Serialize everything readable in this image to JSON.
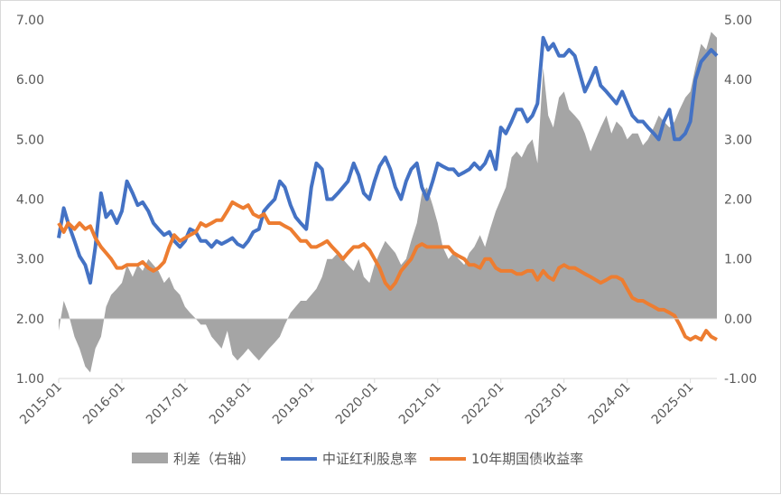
{
  "chart_data": {
    "type": "line",
    "title": "",
    "xlabel": "",
    "ylabel": "",
    "x_ticks": [
      "2015-01",
      "2016-01",
      "2017-01",
      "2018-01",
      "2019-01",
      "2020-01",
      "2021-01",
      "2022-01",
      "2023-01",
      "2024-01",
      "2025-01"
    ],
    "y_left_ticks": [
      "1.00",
      "2.00",
      "3.00",
      "4.00",
      "5.00",
      "6.00",
      "7.00"
    ],
    "y_right_ticks": [
      "-1.00",
      "0.00",
      "1.00",
      "2.00",
      "3.00",
      "4.00",
      "5.00"
    ],
    "ylim_left": [
      1,
      7
    ],
    "ylim_right": [
      -1,
      5
    ],
    "x_range": [
      2015.0,
      2025.42
    ],
    "grid": false,
    "legend_position": "bottom",
    "series": [
      {
        "name": "利差（右轴）",
        "type": "area",
        "axis": "right",
        "color": "#a5a5a5",
        "x": [
          2015.0,
          2015.08,
          2015.15,
          2015.25,
          2015.33,
          2015.42,
          2015.5,
          2015.58,
          2015.67,
          2015.75,
          2015.83,
          2015.92,
          2016.0,
          2016.08,
          2016.17,
          2016.25,
          2016.33,
          2016.42,
          2016.5,
          2016.58,
          2016.67,
          2016.75,
          2016.83,
          2016.92,
          2017.0,
          2017.08,
          2017.17,
          2017.25,
          2017.33,
          2017.42,
          2017.5,
          2017.58,
          2017.67,
          2017.75,
          2017.83,
          2017.92,
          2018.0,
          2018.08,
          2018.17,
          2018.25,
          2018.33,
          2018.42,
          2018.5,
          2018.58,
          2018.67,
          2018.75,
          2018.83,
          2018.92,
          2019.0,
          2019.08,
          2019.17,
          2019.25,
          2019.33,
          2019.42,
          2019.5,
          2019.58,
          2019.67,
          2019.75,
          2019.83,
          2019.92,
          2020.0,
          2020.08,
          2020.17,
          2020.25,
          2020.33,
          2020.42,
          2020.5,
          2020.58,
          2020.67,
          2020.75,
          2020.83,
          2020.92,
          2021.0,
          2021.08,
          2021.17,
          2021.25,
          2021.33,
          2021.42,
          2021.5,
          2021.58,
          2021.67,
          2021.75,
          2021.83,
          2021.92,
          2022.0,
          2022.08,
          2022.17,
          2022.25,
          2022.33,
          2022.42,
          2022.5,
          2022.58,
          2022.67,
          2022.75,
          2022.83,
          2022.92,
          2023.0,
          2023.08,
          2023.17,
          2023.25,
          2023.33,
          2023.42,
          2023.5,
          2023.58,
          2023.67,
          2023.75,
          2023.83,
          2023.92,
          2024.0,
          2024.08,
          2024.17,
          2024.25,
          2024.33,
          2024.42,
          2024.5,
          2024.58,
          2024.67,
          2024.75,
          2024.83,
          2024.92,
          2025.0,
          2025.08,
          2025.17,
          2025.25,
          2025.33,
          2025.42
        ],
        "values": [
          -0.2,
          0.3,
          0.1,
          -0.3,
          -0.5,
          -0.8,
          -0.9,
          -0.5,
          -0.3,
          0.2,
          0.4,
          0.5,
          0.6,
          0.9,
          0.7,
          0.9,
          0.8,
          1.0,
          0.9,
          0.8,
          0.6,
          0.7,
          0.5,
          0.4,
          0.2,
          0.1,
          0.0,
          -0.1,
          -0.1,
          -0.3,
          -0.4,
          -0.5,
          -0.2,
          -0.6,
          -0.7,
          -0.6,
          -0.5,
          -0.6,
          -0.7,
          -0.6,
          -0.5,
          -0.4,
          -0.3,
          -0.1,
          0.1,
          0.2,
          0.3,
          0.3,
          0.4,
          0.5,
          0.7,
          1.0,
          1.0,
          1.1,
          1.0,
          0.9,
          0.8,
          1.0,
          0.7,
          0.6,
          0.9,
          1.1,
          1.3,
          1.2,
          1.1,
          0.9,
          1.0,
          1.3,
          1.6,
          2.1,
          2.2,
          1.9,
          1.6,
          1.2,
          1.0,
          1.1,
          1.0,
          0.9,
          1.1,
          1.2,
          1.4,
          1.2,
          1.5,
          1.8,
          2.0,
          2.2,
          2.7,
          2.8,
          2.7,
          2.9,
          3.0,
          2.6,
          4.2,
          3.4,
          3.2,
          3.7,
          3.8,
          3.5,
          3.4,
          3.3,
          3.1,
          2.8,
          3.0,
          3.2,
          3.4,
          3.1,
          3.3,
          3.2,
          3.0,
          3.1,
          3.1,
          2.9,
          3.0,
          3.2,
          3.4,
          3.3,
          3.2,
          3.3,
          3.5,
          3.7,
          3.8,
          4.2,
          4.6,
          4.5,
          4.8,
          4.7
        ]
      },
      {
        "name": "中证红利股息率",
        "type": "line",
        "axis": "left",
        "color": "#4472c4",
        "x": [
          2015.0,
          2015.08,
          2015.15,
          2015.25,
          2015.33,
          2015.42,
          2015.5,
          2015.58,
          2015.67,
          2015.75,
          2015.83,
          2015.92,
          2016.0,
          2016.08,
          2016.17,
          2016.25,
          2016.33,
          2016.42,
          2016.5,
          2016.58,
          2016.67,
          2016.75,
          2016.83,
          2016.92,
          2017.0,
          2017.08,
          2017.17,
          2017.25,
          2017.33,
          2017.42,
          2017.5,
          2017.58,
          2017.67,
          2017.75,
          2017.83,
          2017.92,
          2018.0,
          2018.08,
          2018.17,
          2018.25,
          2018.33,
          2018.42,
          2018.5,
          2018.58,
          2018.67,
          2018.75,
          2018.83,
          2018.92,
          2019.0,
          2019.08,
          2019.17,
          2019.25,
          2019.33,
          2019.42,
          2019.5,
          2019.58,
          2019.67,
          2019.75,
          2019.83,
          2019.92,
          2020.0,
          2020.08,
          2020.17,
          2020.25,
          2020.33,
          2020.42,
          2020.5,
          2020.58,
          2020.67,
          2020.75,
          2020.83,
          2020.92,
          2021.0,
          2021.08,
          2021.17,
          2021.25,
          2021.33,
          2021.42,
          2021.5,
          2021.58,
          2021.67,
          2021.75,
          2021.83,
          2021.92,
          2022.0,
          2022.08,
          2022.17,
          2022.25,
          2022.33,
          2022.42,
          2022.5,
          2022.58,
          2022.67,
          2022.75,
          2022.83,
          2022.92,
          2023.0,
          2023.08,
          2023.17,
          2023.25,
          2023.33,
          2023.42,
          2023.5,
          2023.58,
          2023.67,
          2023.75,
          2023.83,
          2023.92,
          2024.0,
          2024.08,
          2024.17,
          2024.25,
          2024.33,
          2024.42,
          2024.5,
          2024.58,
          2024.67,
          2024.75,
          2024.83,
          2024.92,
          2025.0,
          2025.08,
          2025.17,
          2025.25,
          2025.33,
          2025.42
        ],
        "values": [
          3.35,
          3.85,
          3.6,
          3.3,
          3.05,
          2.9,
          2.6,
          3.2,
          4.1,
          3.7,
          3.8,
          3.6,
          3.8,
          4.3,
          4.1,
          3.9,
          3.95,
          3.8,
          3.6,
          3.5,
          3.4,
          3.45,
          3.3,
          3.2,
          3.3,
          3.5,
          3.45,
          3.3,
          3.3,
          3.2,
          3.3,
          3.25,
          3.3,
          3.35,
          3.25,
          3.2,
          3.3,
          3.45,
          3.5,
          3.8,
          3.9,
          4.0,
          4.3,
          4.2,
          3.9,
          3.7,
          3.6,
          3.5,
          4.2,
          4.6,
          4.5,
          4.0,
          4.0,
          4.1,
          4.2,
          4.3,
          4.6,
          4.4,
          4.1,
          4.0,
          4.3,
          4.55,
          4.7,
          4.5,
          4.2,
          4.0,
          4.3,
          4.5,
          4.6,
          4.2,
          4.0,
          4.3,
          4.6,
          4.55,
          4.5,
          4.5,
          4.4,
          4.45,
          4.5,
          4.6,
          4.5,
          4.6,
          4.8,
          4.5,
          5.2,
          5.1,
          5.3,
          5.5,
          5.5,
          5.3,
          5.4,
          5.6,
          6.7,
          6.5,
          6.6,
          6.4,
          6.4,
          6.5,
          6.4,
          6.1,
          5.8,
          6.0,
          6.2,
          5.9,
          5.8,
          5.7,
          5.6,
          5.8,
          5.6,
          5.4,
          5.3,
          5.3,
          5.2,
          5.1,
          5.0,
          5.3,
          5.5,
          5.0,
          5.0,
          5.1,
          5.3,
          6.0,
          6.3,
          6.4,
          6.5,
          6.4
        ]
      },
      {
        "name": "10年期国债收益率",
        "type": "line",
        "axis": "left",
        "color": "#ed7d31",
        "x": [
          2015.0,
          2015.08,
          2015.15,
          2015.25,
          2015.33,
          2015.42,
          2015.5,
          2015.58,
          2015.67,
          2015.75,
          2015.83,
          2015.92,
          2016.0,
          2016.08,
          2016.17,
          2016.25,
          2016.33,
          2016.42,
          2016.5,
          2016.58,
          2016.67,
          2016.75,
          2016.83,
          2016.92,
          2017.0,
          2017.08,
          2017.17,
          2017.25,
          2017.33,
          2017.42,
          2017.5,
          2017.58,
          2017.67,
          2017.75,
          2017.83,
          2017.92,
          2018.0,
          2018.08,
          2018.17,
          2018.25,
          2018.33,
          2018.42,
          2018.5,
          2018.58,
          2018.67,
          2018.75,
          2018.83,
          2018.92,
          2019.0,
          2019.08,
          2019.17,
          2019.25,
          2019.33,
          2019.42,
          2019.5,
          2019.58,
          2019.67,
          2019.75,
          2019.83,
          2019.92,
          2020.0,
          2020.08,
          2020.17,
          2020.25,
          2020.33,
          2020.42,
          2020.5,
          2020.58,
          2020.67,
          2020.75,
          2020.83,
          2020.92,
          2021.0,
          2021.08,
          2021.17,
          2021.25,
          2021.33,
          2021.42,
          2021.5,
          2021.58,
          2021.67,
          2021.75,
          2021.83,
          2021.92,
          2022.0,
          2022.08,
          2022.17,
          2022.25,
          2022.33,
          2022.42,
          2022.5,
          2022.58,
          2022.67,
          2022.75,
          2022.83,
          2022.92,
          2023.0,
          2023.08,
          2023.17,
          2023.25,
          2023.33,
          2023.42,
          2023.5,
          2023.58,
          2023.67,
          2023.75,
          2023.83,
          2023.92,
          2024.0,
          2024.08,
          2024.17,
          2024.25,
          2024.33,
          2024.42,
          2024.5,
          2024.58,
          2024.67,
          2024.75,
          2024.83,
          2024.92,
          2025.0,
          2025.08,
          2025.17,
          2025.25,
          2025.33,
          2025.42
        ],
        "values": [
          3.6,
          3.45,
          3.6,
          3.5,
          3.6,
          3.5,
          3.55,
          3.35,
          3.2,
          3.1,
          3.0,
          2.85,
          2.85,
          2.9,
          2.9,
          2.9,
          2.95,
          2.85,
          2.8,
          2.85,
          2.95,
          3.2,
          3.4,
          3.3,
          3.35,
          3.4,
          3.45,
          3.6,
          3.55,
          3.6,
          3.65,
          3.65,
          3.8,
          3.95,
          3.9,
          3.85,
          3.9,
          3.75,
          3.7,
          3.75,
          3.6,
          3.6,
          3.6,
          3.55,
          3.5,
          3.4,
          3.3,
          3.3,
          3.2,
          3.2,
          3.25,
          3.3,
          3.2,
          3.1,
          3.0,
          3.1,
          3.2,
          3.2,
          3.25,
          3.15,
          3.0,
          2.85,
          2.6,
          2.5,
          2.6,
          2.8,
          2.9,
          3.0,
          3.2,
          3.25,
          3.2,
          3.2,
          3.2,
          3.2,
          3.2,
          3.1,
          3.05,
          3.0,
          2.9,
          2.9,
          2.85,
          3.0,
          3.0,
          2.85,
          2.8,
          2.8,
          2.8,
          2.75,
          2.75,
          2.8,
          2.8,
          2.65,
          2.8,
          2.7,
          2.65,
          2.85,
          2.9,
          2.85,
          2.85,
          2.8,
          2.75,
          2.7,
          2.65,
          2.6,
          2.65,
          2.7,
          2.7,
          2.65,
          2.5,
          2.35,
          2.3,
          2.3,
          2.25,
          2.2,
          2.15,
          2.15,
          2.1,
          2.05,
          1.9,
          1.7,
          1.65,
          1.7,
          1.65,
          1.8,
          1.7,
          1.65
        ]
      }
    ]
  }
}
